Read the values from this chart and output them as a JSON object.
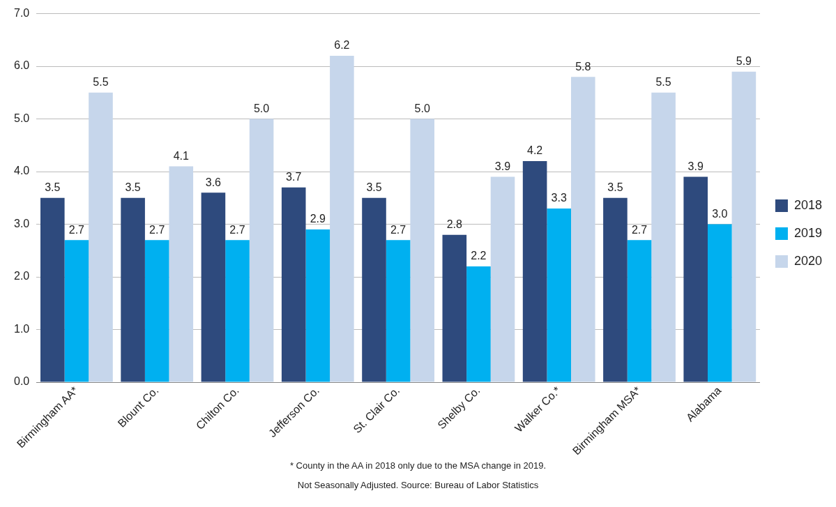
{
  "chart_data": {
    "type": "bar",
    "categories": [
      "Birmingham AA*",
      "Blount Co.",
      "Chilton Co.",
      "Jefferson Co.",
      "St. Clair Co.",
      "Shelby Co.",
      "Walker Co.*",
      "Birmingham MSA*",
      "Alabama"
    ],
    "series": [
      {
        "name": "2018",
        "color": "#2e4a7d",
        "values": [
          3.5,
          3.5,
          3.6,
          3.7,
          3.5,
          2.8,
          4.2,
          3.5,
          3.9
        ],
        "value_labels": [
          "3.5",
          "3.5",
          "3.6",
          "3.7",
          "3.5",
          "2.8",
          "4.2",
          "3.5",
          "3.9"
        ]
      },
      {
        "name": "2019",
        "color": "#00b0f0",
        "values": [
          2.7,
          2.7,
          2.7,
          2.9,
          2.7,
          2.2,
          3.3,
          2.7,
          3.0
        ],
        "value_labels": [
          "2.7",
          "2.7",
          "2.7",
          "2.9",
          "2.7",
          "2.2",
          "3.3",
          "2.7",
          "3.0"
        ]
      },
      {
        "name": "2020",
        "color": "#c6d6eb",
        "values": [
          5.5,
          4.1,
          5.0,
          6.2,
          5.0,
          3.9,
          5.8,
          5.5,
          5.9
        ],
        "value_labels": [
          "5.5",
          "4.1",
          "5.0",
          "6.2",
          "5.0",
          "3.9",
          "5.8",
          "5.5",
          "5.9"
        ]
      }
    ],
    "ylim": [
      0,
      7
    ],
    "yticks": [
      {
        "value": 0,
        "label": "0.0"
      },
      {
        "value": 1,
        "label": "1.0"
      },
      {
        "value": 2,
        "label": "2.0"
      },
      {
        "value": 3,
        "label": "3.0"
      },
      {
        "value": 4,
        "label": "4.0"
      },
      {
        "value": 5,
        "label": "5.0"
      },
      {
        "value": 6,
        "label": "6.0"
      },
      {
        "value": 7,
        "label": "7.0"
      }
    ],
    "grid": "y",
    "legend": "right",
    "annotations": [
      "* County in the AA in 2018 only due to the MSA change in 2019.",
      "Not Seasonally Adjusted.   Source: Bureau of Labor Statistics"
    ]
  }
}
